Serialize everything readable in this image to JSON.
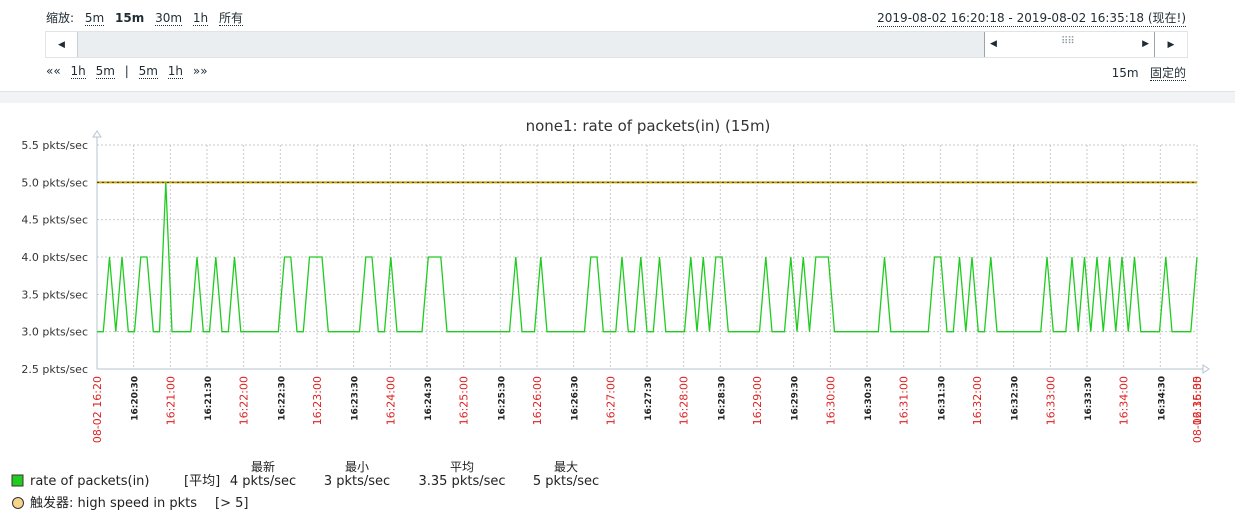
{
  "timeline": {
    "zoom_label": "缩放:",
    "zoom_options": [
      "5m",
      "15m",
      "30m",
      "1h",
      "所有"
    ],
    "zoom_active": "15m",
    "range_text": "2019-08-02 16:20:18 - 2019-08-02 16:35:18 (现在!)",
    "nav_back": "««",
    "nav_back_items": [
      "1h",
      "5m"
    ],
    "nav_sep": "|",
    "nav_fwd_items": [
      "5m",
      "1h"
    ],
    "nav_fwd": "»»",
    "period": "15m",
    "fixed_label": "固定的"
  },
  "colors": {
    "series": "#1fcc1f",
    "trigger": "#c8a000",
    "grid": "#c9c9c9",
    "red_tick": "#dd2222",
    "axis": "#b6c6d2"
  },
  "chart_data": {
    "type": "line",
    "title": "none1: rate of packets(in) (15m)",
    "ylim": [
      2.5,
      5.5
    ],
    "yticks": [
      "5.5 pkts/sec",
      "5.0 pkts/sec",
      "4.5 pkts/sec",
      "4.0 pkts/sec",
      "3.5 pkts/sec",
      "3.0 pkts/sec",
      "2.5 pkts/sec"
    ],
    "xlim": [
      "16:20:18",
      "16:35:18"
    ],
    "xticks": [
      {
        "label": "08-02 16:20",
        "major": true
      },
      {
        "label": "16:20:30",
        "major": false
      },
      {
        "label": "16:21:00",
        "major": true
      },
      {
        "label": "16:21:30",
        "major": false
      },
      {
        "label": "16:22:00",
        "major": true
      },
      {
        "label": "16:22:30",
        "major": false
      },
      {
        "label": "16:23:00",
        "major": true
      },
      {
        "label": "16:23:30",
        "major": false
      },
      {
        "label": "16:24:00",
        "major": true
      },
      {
        "label": "16:24:30",
        "major": false
      },
      {
        "label": "16:25:00",
        "major": true
      },
      {
        "label": "16:25:30",
        "major": false
      },
      {
        "label": "16:26:00",
        "major": true
      },
      {
        "label": "16:26:30",
        "major": false
      },
      {
        "label": "16:27:00",
        "major": true
      },
      {
        "label": "16:27:30",
        "major": false
      },
      {
        "label": "16:28:00",
        "major": true
      },
      {
        "label": "16:28:30",
        "major": false
      },
      {
        "label": "16:29:00",
        "major": true
      },
      {
        "label": "16:29:30",
        "major": false
      },
      {
        "label": "16:30:00",
        "major": true
      },
      {
        "label": "16:30:30",
        "major": false
      },
      {
        "label": "16:31:00",
        "major": true
      },
      {
        "label": "16:31:30",
        "major": false
      },
      {
        "label": "16:32:00",
        "major": true
      },
      {
        "label": "16:32:30",
        "major": false
      },
      {
        "label": "16:33:00",
        "major": true
      },
      {
        "label": "16:33:30",
        "major": false
      },
      {
        "label": "16:34:00",
        "major": true
      },
      {
        "label": "16:34:30",
        "major": false
      },
      {
        "label": "16:35:00",
        "major": true
      },
      {
        "label": "08-02 16:35",
        "major": true
      }
    ],
    "series": [
      {
        "name": "rate of packets(in)",
        "values": [
          3,
          3,
          4,
          3,
          4,
          3,
          3,
          4,
          4,
          3,
          3,
          5,
          3,
          3,
          3,
          3,
          4,
          3,
          3,
          4,
          3,
          3,
          4,
          3,
          3,
          3,
          3,
          3,
          3,
          3,
          4,
          4,
          3,
          3,
          4,
          4,
          4,
          3,
          3,
          3,
          3,
          3,
          3,
          4,
          4,
          3,
          3,
          4,
          3,
          3,
          3,
          3,
          3,
          4,
          4,
          4,
          3,
          3,
          3,
          3,
          3,
          3,
          3,
          3,
          3,
          3,
          3,
          4,
          3,
          3,
          3,
          4,
          3,
          3,
          3,
          3,
          3,
          3,
          3,
          4,
          4,
          3,
          3,
          3,
          4,
          3,
          3,
          4,
          3,
          3,
          4,
          3,
          3,
          3,
          3,
          4,
          3,
          4,
          3,
          4,
          4,
          3,
          3,
          3,
          3,
          3,
          3,
          4,
          3,
          3,
          3,
          4,
          3,
          4,
          3,
          4,
          4,
          4,
          3,
          3,
          3,
          3,
          3,
          3,
          3,
          3,
          4,
          3,
          3,
          3,
          3,
          3,
          3,
          3,
          4,
          4,
          3,
          3,
          4,
          3,
          4,
          3,
          3,
          4,
          3,
          3,
          3,
          3,
          3,
          3,
          3,
          3,
          4,
          3,
          3,
          3,
          4,
          3,
          4,
          3,
          4,
          3,
          4,
          3,
          4,
          3,
          4,
          3,
          3,
          3,
          3,
          4,
          3,
          3,
          3,
          3,
          4
        ]
      }
    ],
    "trigger": {
      "name": "high speed in pkts",
      "value": 5,
      "condition": "[> 5]"
    },
    "legend": {
      "series_name": "rate of packets(in)",
      "func_tag": "[平均]",
      "headers": [
        "最新",
        "最小",
        "平均",
        "最大"
      ],
      "last": "4 pkts/sec",
      "min": "3 pkts/sec",
      "avg": "3.35 pkts/sec",
      "max": "5 pkts/sec",
      "trigger_prefix": "触发器:",
      "trigger_name": "high speed in pkts",
      "trigger_condition": "[> 5]"
    }
  }
}
